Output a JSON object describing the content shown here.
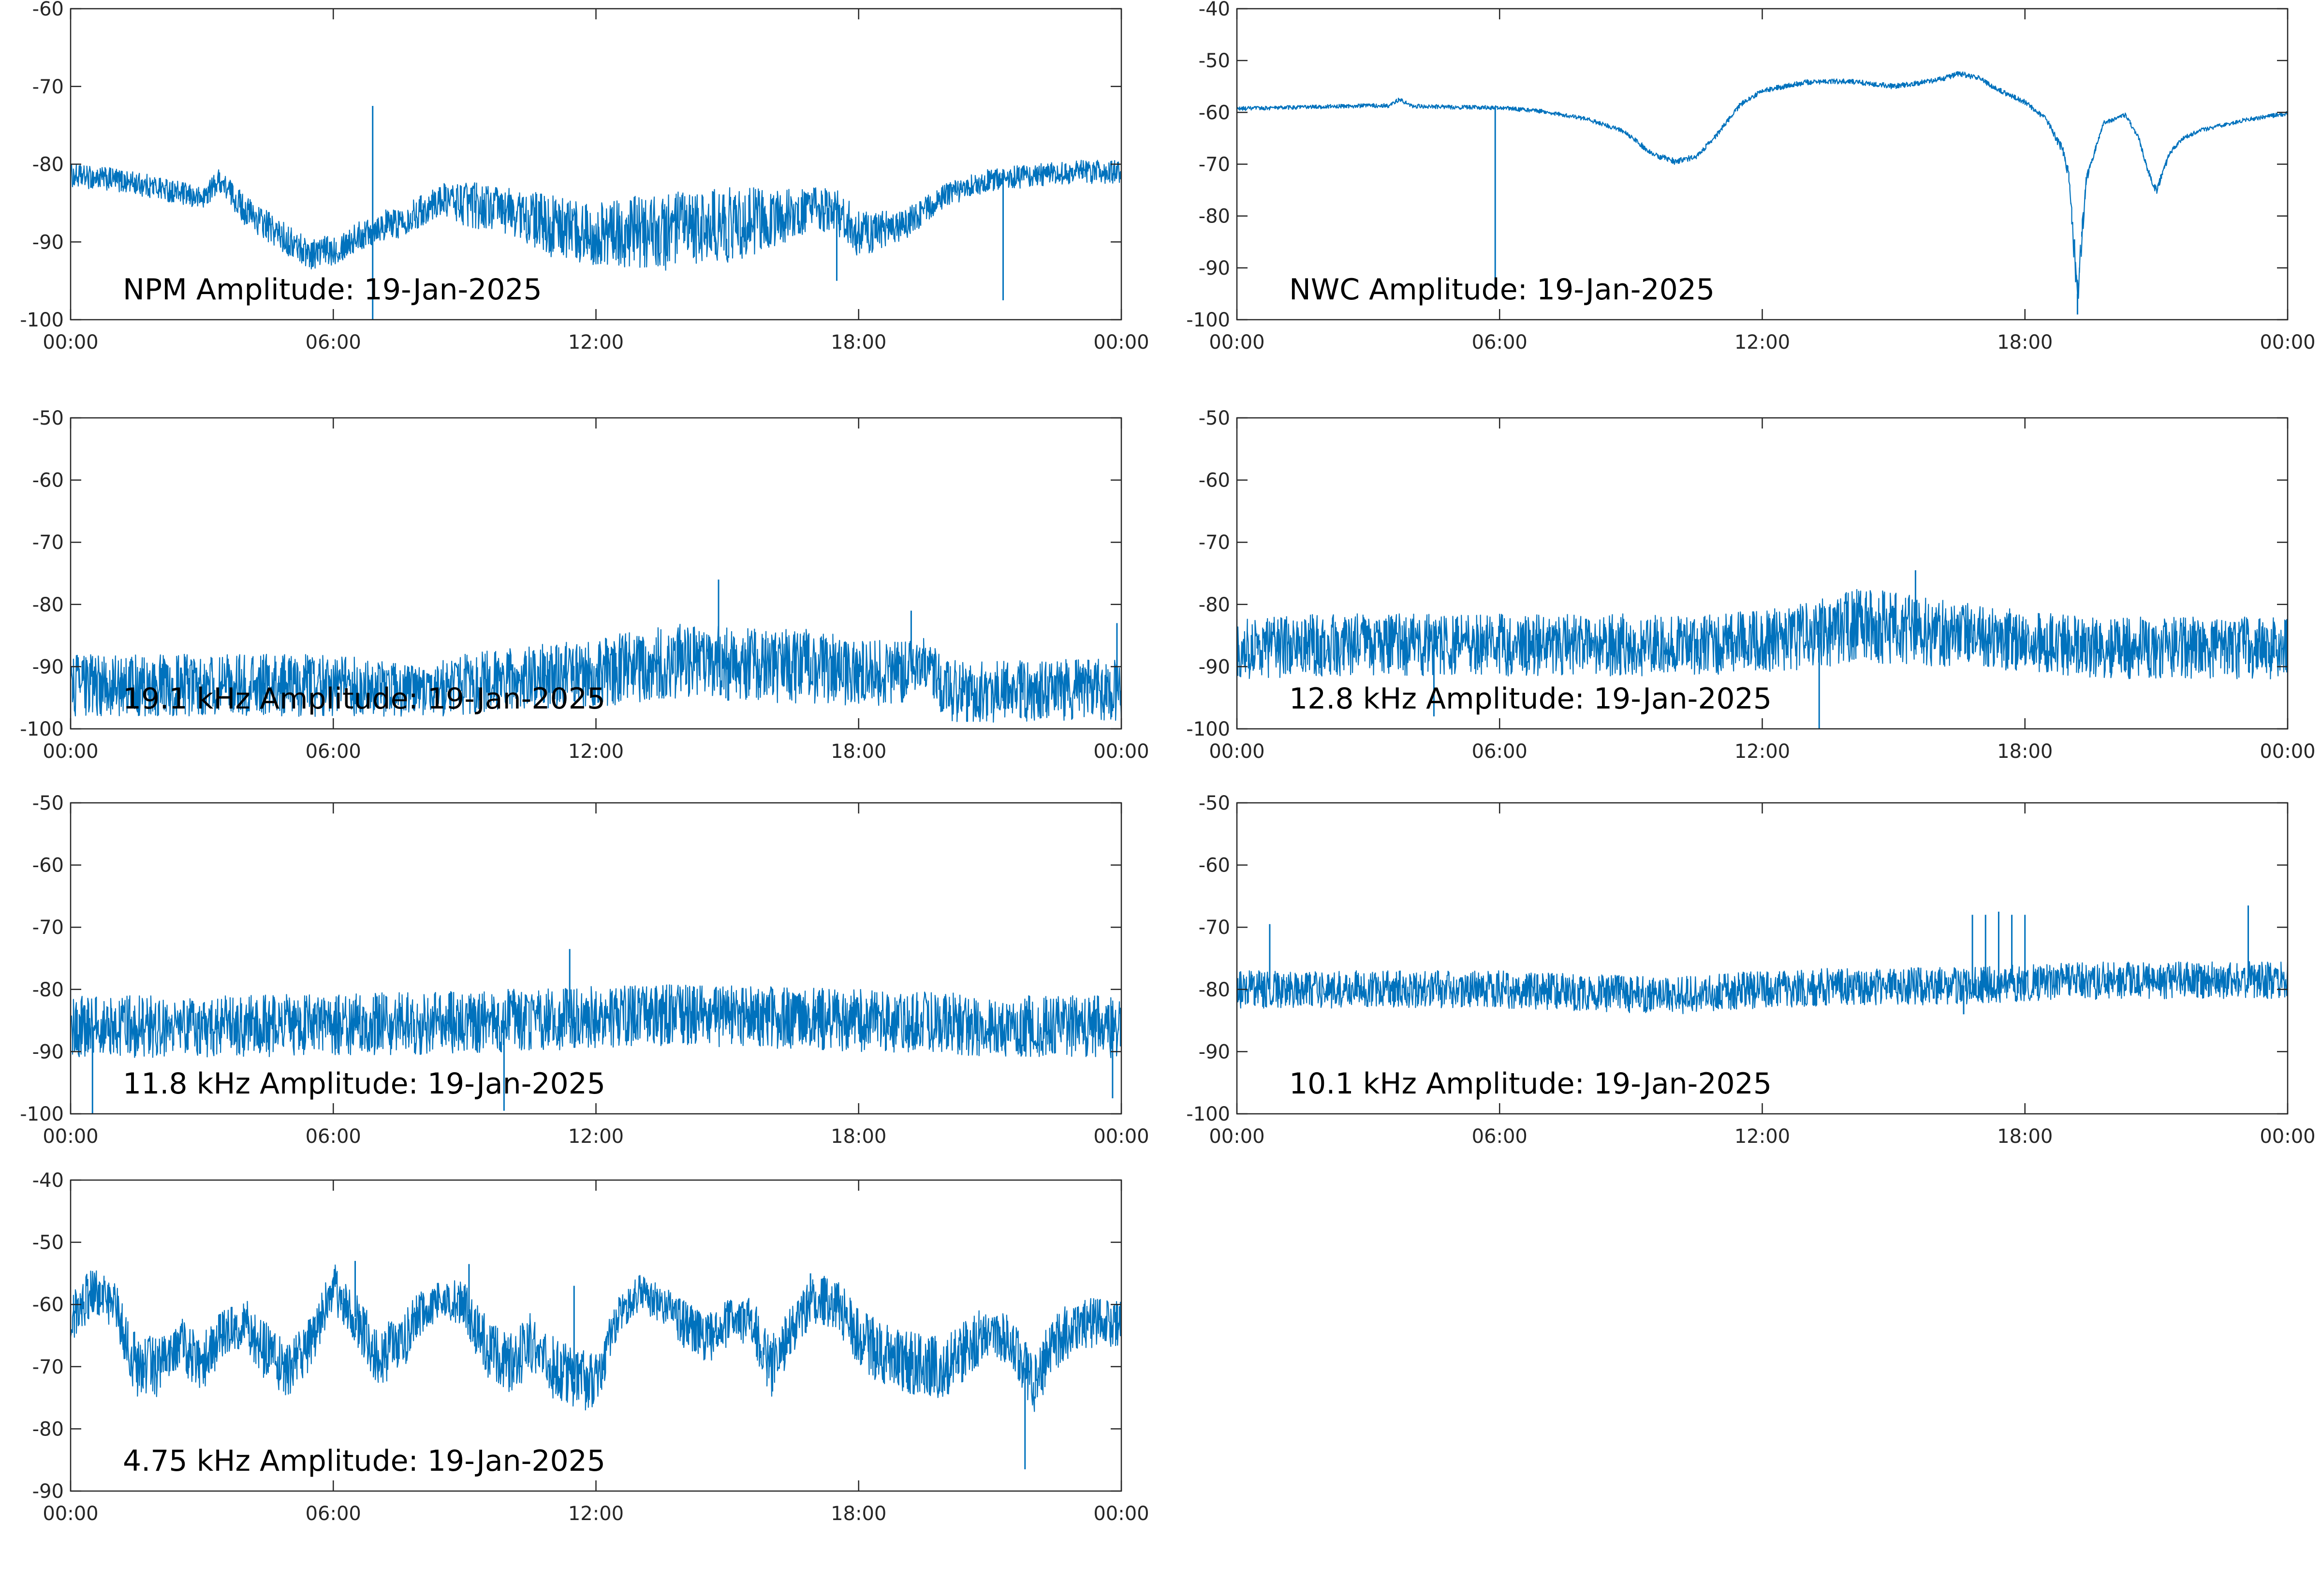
{
  "figure": {
    "line_color": "#0072bd",
    "axis_color": "#262626",
    "background": "#ffffff"
  },
  "chart_data": [
    {
      "type": "line",
      "title": "NPM Amplitude: 19-Jan-2025",
      "xlabel": "",
      "ylabel": "",
      "x_ticks": [
        "00:00",
        "06:00",
        "12:00",
        "18:00",
        "00:00"
      ],
      "xlim": [
        0,
        24
      ],
      "ylim": [
        -100,
        -60
      ],
      "y_ticks": [
        -100,
        -90,
        -80,
        -70,
        -60
      ],
      "grid": false,
      "series": [
        {
          "x": [
            0,
            1,
            2,
            3,
            3.4,
            4,
            5,
            5.5,
            6,
            7,
            7.5,
            8,
            8.5,
            9,
            10,
            11,
            12,
            13,
            14,
            15,
            16,
            17,
            17.5,
            18,
            19,
            20,
            21,
            22,
            23,
            24
          ],
          "mean": [
            -81.5,
            -82,
            -83,
            -84.5,
            -82,
            -86,
            -90,
            -91.5,
            -91,
            -88,
            -87.5,
            -86,
            -84.5,
            -85,
            -86,
            -88,
            -89,
            -89,
            -88.5,
            -88,
            -87,
            -86,
            -86,
            -89,
            -88,
            -84,
            -82,
            -81.5,
            -81,
            -81
          ],
          "noise": [
            1.5,
            1.5,
            1.5,
            1.5,
            1.5,
            2,
            2,
            2,
            2,
            2,
            2,
            2,
            2,
            3,
            3,
            4,
            4,
            5,
            5,
            5,
            4,
            3,
            3,
            3,
            2,
            1.5,
            1.5,
            1.5,
            1.5,
            1.5
          ],
          "spikes": [
            [
              6.9,
              -72.5
            ],
            [
              6.9,
              -100
            ],
            [
              21.3,
              -97.5
            ],
            [
              17.5,
              -95
            ]
          ]
        }
      ]
    },
    {
      "type": "line",
      "title": "NWC Amplitude: 19-Jan-2025",
      "xlabel": "",
      "ylabel": "",
      "x_ticks": [
        "00:00",
        "06:00",
        "12:00",
        "18:00",
        "00:00"
      ],
      "xlim": [
        0,
        24
      ],
      "ylim": [
        -100,
        -40
      ],
      "y_ticks": [
        -100,
        -90,
        -80,
        -70,
        -60,
        -50,
        -40
      ],
      "grid": false,
      "series": [
        {
          "x": [
            0,
            1,
            2,
            3,
            3.5,
            3.7,
            4,
            5,
            6,
            7,
            8,
            8.8,
            9.5,
            10,
            10.5,
            11,
            11.5,
            12,
            13,
            14,
            15,
            16,
            16.5,
            17,
            17.3,
            17.6,
            18,
            18.5,
            18.9,
            19.0,
            19.2,
            19.4,
            19.5,
            19.8,
            20.3,
            20.6,
            20.8,
            21.0,
            21.3,
            21.6,
            22,
            23,
            24
          ],
          "mean": [
            -59.3,
            -59.1,
            -58.9,
            -58.7,
            -58.7,
            -57.5,
            -58.8,
            -59.0,
            -59.1,
            -59.8,
            -61.3,
            -63.5,
            -68,
            -69.5,
            -68.5,
            -64,
            -58.5,
            -55.8,
            -54.2,
            -54.0,
            -55.0,
            -53.8,
            -52.5,
            -53.5,
            -55.3,
            -56.5,
            -58,
            -61.5,
            -68,
            -73,
            -95,
            -73,
            -70,
            -62,
            -60.5,
            -65,
            -71,
            -75,
            -68,
            -65,
            -63.5,
            -61.5,
            -60.2
          ],
          "noise": [
            0.4,
            0.4,
            0.4,
            0.4,
            0.4,
            0.4,
            0.4,
            0.4,
            0.4,
            0.4,
            0.4,
            0.4,
            0.6,
            0.6,
            0.5,
            0.5,
            0.5,
            0.5,
            0.5,
            0.5,
            0.5,
            0.5,
            0.5,
            0.5,
            0.5,
            0.5,
            0.5,
            0.5,
            1,
            2,
            4,
            1,
            0.6,
            0.4,
            0.4,
            0.5,
            0.6,
            1,
            0.5,
            0.4,
            0.4,
            0.4,
            0.4
          ],
          "spikes": [
            [
              5.9,
              -59.5
            ],
            [
              5.9,
              -96
            ],
            [
              19.2,
              -99
            ],
            [
              19.3,
              -83
            ]
          ]
        }
      ]
    },
    {
      "type": "line",
      "title": "19.1 kHz Amplitude: 19-Jan-2025",
      "xlabel": "",
      "ylabel": "",
      "x_ticks": [
        "00:00",
        "06:00",
        "12:00",
        "18:00",
        "00:00"
      ],
      "xlim": [
        0,
        24
      ],
      "ylim": [
        -100,
        -50
      ],
      "y_ticks": [
        -100,
        -90,
        -80,
        -70,
        -60,
        -50
      ],
      "grid": false,
      "series": [
        {
          "x": [
            0,
            2,
            4,
            6,
            8,
            9,
            10,
            12,
            13,
            14,
            15,
            16,
            17,
            18,
            19,
            19.5,
            20,
            21,
            22,
            23,
            24
          ],
          "mean": [
            -93,
            -93,
            -93,
            -93,
            -94,
            -93,
            -92,
            -91,
            -90,
            -89,
            -89.5,
            -90,
            -90,
            -91,
            -91,
            -89,
            -94,
            -94,
            -94,
            -93.5,
            -94
          ],
          "noise": [
            5,
            5,
            5,
            5,
            4,
            5,
            5,
            5.5,
            6,
            6,
            6,
            6,
            6,
            5.5,
            5,
            4,
            5,
            5,
            5,
            5,
            5
          ],
          "spikes": [
            [
              14.8,
              -76
            ],
            [
              19.2,
              -81
            ],
            [
              23.9,
              -83
            ]
          ]
        }
      ]
    },
    {
      "type": "line",
      "title": "12.8 kHz Amplitude: 19-Jan-2025",
      "xlabel": "",
      "ylabel": "",
      "x_ticks": [
        "00:00",
        "06:00",
        "12:00",
        "18:00",
        "00:00"
      ],
      "xlim": [
        0,
        24
      ],
      "ylim": [
        -100,
        -50
      ],
      "y_ticks": [
        -100,
        -90,
        -80,
        -70,
        -60,
        -50
      ],
      "grid": false,
      "series": [
        {
          "x": [
            0,
            2,
            4,
            6,
            8,
            10,
            12,
            13,
            14,
            15,
            16,
            17,
            18,
            19,
            20,
            22,
            24
          ],
          "mean": [
            -87,
            -86.5,
            -86.5,
            -86.5,
            -86.5,
            -86.5,
            -86,
            -85,
            -83.5,
            -83.5,
            -84.5,
            -85,
            -86,
            -86.5,
            -87,
            -87,
            -87
          ],
          "noise": [
            5,
            5,
            5,
            5,
            5,
            5,
            5,
            5.5,
            6,
            6,
            5.5,
            5,
            5,
            5,
            5,
            5,
            5
          ],
          "spikes": [
            [
              13.3,
              -100
            ],
            [
              4.5,
              -98
            ],
            [
              15.5,
              -74.5
            ]
          ]
        }
      ]
    },
    {
      "type": "line",
      "title": "11.8 kHz Amplitude: 19-Jan-2025",
      "xlabel": "",
      "ylabel": "",
      "x_ticks": [
        "00:00",
        "06:00",
        "12:00",
        "18:00",
        "00:00"
      ],
      "xlim": [
        0,
        24
      ],
      "ylim": [
        -100,
        -50
      ],
      "y_ticks": [
        -100,
        -90,
        -80,
        -70,
        -60,
        -50
      ],
      "grid": false,
      "series": [
        {
          "x": [
            0,
            2,
            4,
            6,
            8,
            10,
            12,
            14,
            16,
            18,
            20,
            22,
            24
          ],
          "mean": [
            -86,
            -86,
            -86,
            -85.5,
            -85.5,
            -85,
            -84.5,
            -84,
            -84.5,
            -85,
            -85.5,
            -86,
            -86
          ],
          "noise": [
            5,
            5,
            5,
            5,
            5,
            5,
            5,
            5,
            5,
            5,
            5,
            5,
            5
          ],
          "spikes": [
            [
              0.5,
              -100
            ],
            [
              11.4,
              -73.5
            ],
            [
              9.9,
              -99.5
            ],
            [
              23.8,
              -97.5
            ]
          ]
        }
      ]
    },
    {
      "type": "line",
      "title": "10.1 kHz Amplitude: 19-Jan-2025",
      "xlabel": "",
      "ylabel": "",
      "x_ticks": [
        "00:00",
        "06:00",
        "12:00",
        "18:00",
        "00:00"
      ],
      "xlim": [
        0,
        24
      ],
      "ylim": [
        -100,
        -50
      ],
      "y_ticks": [
        -100,
        -90,
        -80,
        -70,
        -60,
        -50
      ],
      "grid": false,
      "series": [
        {
          "x": [
            0,
            2,
            4,
            6,
            8,
            10,
            12,
            14,
            16,
            18,
            20,
            22,
            24
          ],
          "mean": [
            -80,
            -80,
            -80,
            -80,
            -80.5,
            -81,
            -80,
            -79.5,
            -79.5,
            -79,
            -78.5,
            -78.5,
            -78.5
          ],
          "noise": [
            3,
            3,
            3,
            3,
            3,
            3,
            3,
            3,
            3,
            3,
            3,
            3,
            3
          ],
          "spikes": [
            [
              0.75,
              -69.5
            ],
            [
              16.8,
              -68
            ],
            [
              17.1,
              -68
            ],
            [
              17.4,
              -67.5
            ],
            [
              17.7,
              -68
            ],
            [
              18.0,
              -68
            ],
            [
              16.6,
              -84
            ],
            [
              23.1,
              -66.5
            ]
          ]
        }
      ]
    },
    {
      "type": "line",
      "title": "4.75 kHz Amplitude: 19-Jan-2025",
      "xlabel": "",
      "ylabel": "",
      "x_ticks": [
        "00:00",
        "06:00",
        "12:00",
        "18:00",
        "00:00"
      ],
      "xlim": [
        0,
        24
      ],
      "ylim": [
        -90,
        -40
      ],
      "y_ticks": [
        -90,
        -80,
        -70,
        -60,
        -50,
        -40
      ],
      "grid": false,
      "series": [
        {
          "x": [
            0,
            0.5,
            1,
            1.5,
            2,
            2.5,
            3,
            3.5,
            4,
            4.5,
            5,
            5.5,
            6,
            6.5,
            7,
            7.5,
            8,
            8.5,
            9,
            9.5,
            10,
            10.5,
            11,
            11.5,
            12,
            12.5,
            13,
            13.5,
            14,
            14.5,
            15,
            15.5,
            16,
            16.5,
            17,
            17.5,
            18,
            18.5,
            19,
            19.5,
            20,
            20.5,
            21,
            21.5,
            22,
            22.5,
            23,
            23.5,
            24
          ],
          "mean": [
            -62,
            -58,
            -60,
            -70,
            -70,
            -66,
            -70,
            -64,
            -63,
            -68,
            -71,
            -66,
            -57,
            -62,
            -68,
            -67,
            -61,
            -59,
            -60,
            -67,
            -70,
            -66,
            -70,
            -72,
            -72,
            -62,
            -58,
            -60,
            -63,
            -66,
            -63,
            -62,
            -70,
            -64,
            -59,
            -60,
            -65,
            -68,
            -69,
            -70,
            -70,
            -67,
            -64,
            -66,
            -73,
            -66,
            -63,
            -63,
            -63
          ],
          "noise": [
            4,
            4,
            4,
            5,
            5,
            4,
            5,
            4,
            4,
            5,
            5,
            4,
            4,
            4,
            5,
            5,
            4,
            3,
            4,
            5,
            5,
            5,
            5,
            5,
            5,
            3,
            3,
            3,
            4,
            4,
            4,
            4,
            5,
            4,
            4,
            4,
            5,
            5,
            5,
            5,
            5,
            5,
            4,
            4,
            5,
            5,
            4,
            4,
            4
          ],
          "spikes": [
            [
              9.1,
              -53.5
            ],
            [
              11.5,
              -57
            ],
            [
              21.8,
              -86.5
            ],
            [
              16.9,
              -55
            ],
            [
              6.5,
              -53
            ]
          ]
        }
      ]
    }
  ]
}
